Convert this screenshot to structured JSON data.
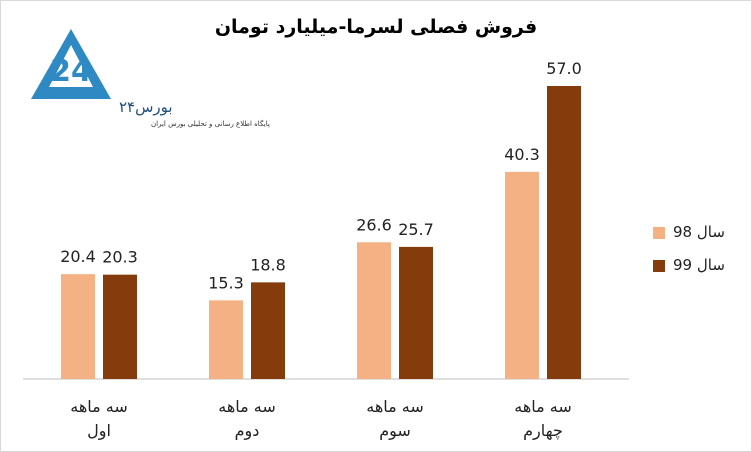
{
  "chart_data": {
    "type": "bar",
    "title": "فروش فصلی لسرما-میلیارد تومان",
    "categories": [
      "سه ماهه اول",
      "سه ماهه دوم",
      "سه ماهه سوم",
      "سه ماهه چهارم"
    ],
    "series": [
      {
        "name": "سال 98",
        "color": "#f4b183",
        "values": [
          20.4,
          15.3,
          26.6,
          40.3
        ],
        "value_labels": [
          "20.4",
          "15.3",
          "26.6",
          "40.3"
        ]
      },
      {
        "name": "سال 99",
        "color": "#843c0c",
        "values": [
          20.3,
          18.8,
          25.7,
          57.0
        ],
        "value_labels": [
          "20.3",
          "18.8",
          "25.7",
          "57.0"
        ]
      }
    ],
    "legend": "right"
  },
  "logo": {
    "name": "بورس۲۴",
    "tagline": "پایگاه اطلاع رسانی و تحلیلی بورس ایران"
  }
}
